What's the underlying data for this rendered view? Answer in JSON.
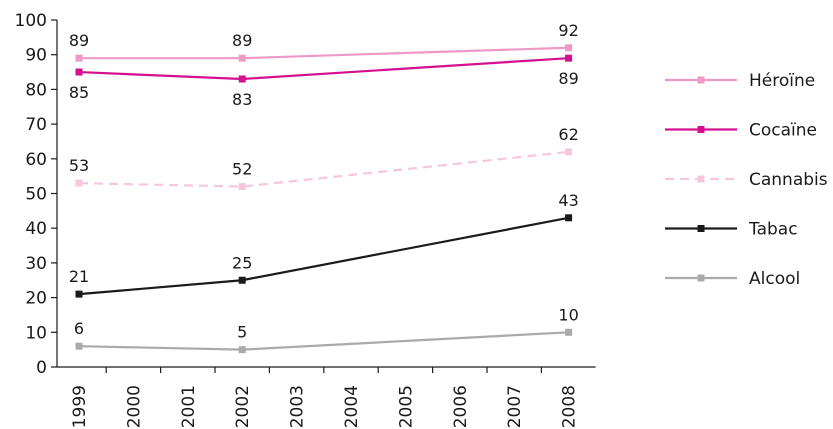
{
  "chart_data": {
    "type": "line",
    "x": [
      "1999",
      "2000",
      "2001",
      "2002",
      "2003",
      "2004",
      "2005",
      "2006",
      "2007",
      "2008"
    ],
    "ylim": [
      0,
      100
    ],
    "yticks": [
      0,
      10,
      20,
      30,
      40,
      50,
      60,
      70,
      80,
      90,
      100
    ],
    "grid": false,
    "legend_position": "right",
    "series": [
      {
        "name": "Héroïne",
        "color": "#ee99c7",
        "dash": false,
        "points": [
          {
            "x": "1999",
            "y": 89
          },
          {
            "x": "2002",
            "y": 89
          },
          {
            "x": "2008",
            "y": 92
          }
        ],
        "label_side": [
          "above",
          "above",
          "above"
        ]
      },
      {
        "name": "Cocaïne",
        "color": "#d4108f",
        "dash": false,
        "points": [
          {
            "x": "1999",
            "y": 85
          },
          {
            "x": "2002",
            "y": 83
          },
          {
            "x": "2008",
            "y": 89
          }
        ],
        "label_side": [
          "below",
          "below",
          "below"
        ]
      },
      {
        "name": "Cannabis",
        "color": "#f6c6df",
        "dash": true,
        "points": [
          {
            "x": "1999",
            "y": 53
          },
          {
            "x": "2002",
            "y": 52
          },
          {
            "x": "2008",
            "y": 62
          }
        ],
        "label_side": [
          "above",
          "above",
          "above"
        ]
      },
      {
        "name": "Tabac",
        "color": "#1a1a1a",
        "dash": false,
        "points": [
          {
            "x": "1999",
            "y": 21
          },
          {
            "x": "2002",
            "y": 25
          },
          {
            "x": "2008",
            "y": 43
          }
        ],
        "label_side": [
          "above",
          "above",
          "above"
        ]
      },
      {
        "name": "Alcool",
        "color": "#aaaaaa",
        "dash": false,
        "points": [
          {
            "x": "1999",
            "y": 6
          },
          {
            "x": "2002",
            "y": 5
          },
          {
            "x": "2008",
            "y": 10
          }
        ],
        "label_side": [
          "above",
          "above",
          "above"
        ]
      }
    ]
  }
}
